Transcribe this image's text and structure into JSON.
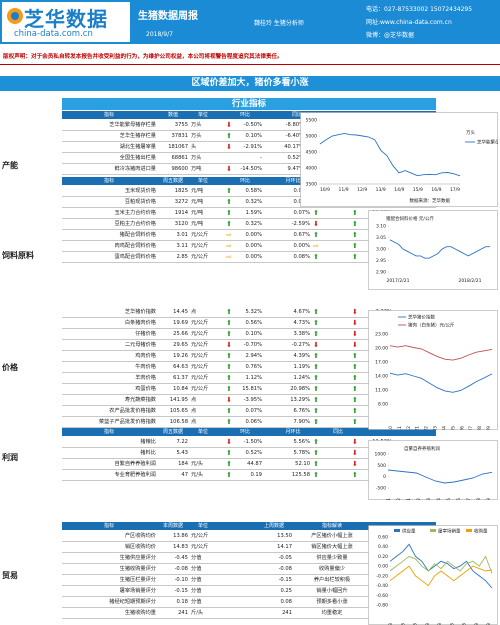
{
  "header": {
    "logo_cn": "芝华数据",
    "logo_en": "china-data.com.cn",
    "title": "生猪数据周报",
    "date": "2018/9/7",
    "author": "魏桂玲 生猪分析师",
    "tel": "电话：027-87533002    15072434295",
    "site": "网址:www.china-data.com.cn",
    "weibo": "微博：@芝华数据"
  },
  "notice": "版权声明：对于会员私自转发本报告并收受利益的行为，为维护公司权益，本公司将视警告程度追究其法律责任。",
  "banner": "区域价差加大，猪价多看小涨",
  "section_title": "行业指标",
  "production": {
    "category": "产能",
    "headers": [
      "指标",
      "数值",
      "单位",
      "环比",
      "",
      "同比"
    ],
    "rows": [
      {
        "name": "芝华能繁母猪存栏量",
        "value": "3755",
        "unit": "万头",
        "mom": "-0.50%",
        "mom_dir": "down",
        "yoy": "-8.80%",
        "yoy_dir": "down"
      },
      {
        "name": "芝华生猪存栏量",
        "value": "37831",
        "unit": "万头",
        "mom": "0.10%",
        "mom_dir": "up",
        "yoy": "-6.40%",
        "yoy_dir": "down"
      },
      {
        "name": "湖北生猪屠宰量",
        "value": "181067",
        "unit": "头",
        "mom": "-2.91%",
        "mom_dir": "down",
        "yoy": "40.17%",
        "yoy_dir": "up"
      },
      {
        "name": "全国生猪出栏量",
        "value": "68861",
        "unit": "万头",
        "mom": "-",
        "mom_dir": "none",
        "yoy": "0.52%",
        "yoy_dir": "up"
      },
      {
        "name": "鲜冷冻猪肉进口量",
        "value": "98600",
        "unit": "万吨",
        "mom": "-14.50%",
        "mom_dir": "down",
        "yoy": "9.47%",
        "yoy_dir": "up"
      }
    ]
  },
  "feed": {
    "category": "饲料原料",
    "headers": [
      "指标",
      "周五数据",
      "单位",
      "环比",
      "月环比",
      "同比"
    ],
    "rows": [
      {
        "name": "玉米现货价格",
        "value": "1825",
        "unit": "元/吨",
        "mom": "0.58%",
        "mom_dir": "up",
        "m2": "0.07%",
        "m2_dir": "up",
        "yoy": "6.33%",
        "yoy_dir": "up"
      },
      {
        "name": "豆粕现货价格",
        "value": "3272",
        "unit": "元/吨",
        "mom": "0.32%",
        "mom_dir": "up",
        "m2": "0.07%",
        "m2_dir": "up",
        "yoy": "12.69%",
        "yoy_dir": "up"
      },
      {
        "name": "玉米主力合约价格",
        "value": "1914",
        "unit": "元/吨",
        "mom": "1.59%",
        "mom_dir": "up",
        "m2": "0.07%",
        "m2_dir": "up",
        "yoy": "11.09%",
        "yoy_dir": "up"
      },
      {
        "name": "豆粕主力合约价格",
        "value": "3120",
        "unit": "元/吨",
        "mom": "0.32%",
        "mom_dir": "up",
        "m2": "-2.59%",
        "m2_dir": "down",
        "yoy": "11.95%",
        "yoy_dir": "up"
      },
      {
        "name": "猪配合饲料价格",
        "value": "3.01",
        "unit": "元/公斤",
        "mom": "0.00%",
        "mom_dir": "flat",
        "m2": "0.67%",
        "m2_dir": "up",
        "yoy": "0.67%",
        "yoy_dir": "up"
      },
      {
        "name": "肉鸡配合饲料价格",
        "value": "3.11",
        "unit": "元/公斤",
        "mom": "0.00%",
        "mom_dir": "flat",
        "m2": "0.00%",
        "m2_dir": "flat",
        "yoy": "1.30%",
        "yoy_dir": "up"
      },
      {
        "name": "蛋鸡配合饲料价格",
        "value": "2.85",
        "unit": "元/公斤",
        "mom": "0.00%",
        "mom_dir": "flat",
        "m2": "0.08%",
        "m2_dir": "up",
        "yoy": "1.79%",
        "yoy_dir": "up"
      }
    ]
  },
  "price": {
    "category": "价格",
    "rows": [
      {
        "name": "芝华猪价指数",
        "value": "14.45",
        "unit": "点",
        "mom": "5.32%",
        "mom_dir": "up",
        "m2": "4.67%",
        "m2_dir": "up",
        "yoy": "-2.23%",
        "yoy_dir": "down"
      },
      {
        "name": "白条猪肉价格",
        "value": "19.69",
        "unit": "元/公斤",
        "mom": "0.56%",
        "mom_dir": "up",
        "m2": "4.73%",
        "m2_dir": "up",
        "yoy": "-3.43%",
        "yoy_dir": "down"
      },
      {
        "name": "仔猪价格",
        "value": "25.66",
        "unit": "元/公斤",
        "mom": "0.10%",
        "mom_dir": "up",
        "m2": "3.38%",
        "m2_dir": "up",
        "yoy": "-26.20%",
        "yoy_dir": "down"
      },
      {
        "name": "二元母猪价格",
        "value": "29.65",
        "unit": "元/公斤",
        "mom": "-0.70%",
        "mom_dir": "down",
        "m2": "-0.27%",
        "m2_dir": "down",
        "yoy": "-16.12%",
        "yoy_dir": "down"
      },
      {
        "name": "鸡肉价格",
        "value": "19.26",
        "unit": "元/公斤",
        "mom": "2.94%",
        "mom_dir": "up",
        "m2": "4.39%",
        "m2_dir": "up",
        "yoy": "7.00%",
        "yoy_dir": "up"
      },
      {
        "name": "牛肉价格",
        "value": "64.63",
        "unit": "元/公斤",
        "mom": "0.76%",
        "mom_dir": "up",
        "m2": "1.19%",
        "m2_dir": "up",
        "yoy": "4.07%",
        "yoy_dir": "up"
      },
      {
        "name": "羊肉价格",
        "value": "61.37",
        "unit": "元/公斤",
        "mom": "1.12%",
        "mom_dir": "up",
        "m2": "1.24%",
        "m2_dir": "up",
        "yoy": "12.07%",
        "yoy_dir": "up"
      },
      {
        "name": "鸡蛋价格",
        "value": "10.84",
        "unit": "元/公斤",
        "mom": "15.81%",
        "mom_dir": "up",
        "m2": "20.98%",
        "m2_dir": "up",
        "yoy": "14.47%",
        "yoy_dir": "up"
      },
      {
        "name": "寿光蔬菜指数",
        "value": "141.95",
        "unit": "点",
        "mom": "-3.95%",
        "mom_dir": "down",
        "m2": "13.29%",
        "m2_dir": "up",
        "yoy": "16.54%",
        "yoy_dir": "up"
      },
      {
        "name": "农产品批发价格指数",
        "value": "105.65",
        "unit": "点",
        "mom": "0.07%",
        "mom_dir": "up",
        "m2": "6.76%",
        "m2_dir": "up",
        "yoy": "6.08%",
        "yoy_dir": "up"
      },
      {
        "name": "菜篮子产品批发价格指数",
        "value": "106.58",
        "unit": "点",
        "mom": "0.06%",
        "mom_dir": "up",
        "m2": "7.90%",
        "m2_dir": "up",
        "yoy": "7.06%",
        "yoy_dir": "up"
      }
    ]
  },
  "profit": {
    "category": "利润",
    "headers": [
      "指标",
      "周五数据",
      "单位",
      "环比",
      "月环比",
      "同比"
    ],
    "rows": [
      {
        "name": "猪粮比",
        "value": "7.22",
        "unit": "",
        "mom": "-1.50%",
        "mom_dir": "down",
        "m2": "5.56%",
        "m2_dir": "up",
        "yoy": "-11.52%",
        "yoy_dir": "down"
      },
      {
        "name": "猪料比",
        "value": "5.43",
        "unit": "",
        "mom": "0.52%",
        "mom_dir": "up",
        "m2": "5.78%",
        "m2_dir": "up",
        "yoy": "-11.23%",
        "yoy_dir": "down"
      },
      {
        "name": "自繁自养养殖利润",
        "value": "184",
        "unit": "元/头",
        "mom": "44.87",
        "mom_dir": "up",
        "m2": "52.10",
        "m2_dir": "up",
        "yoy": "-194.13",
        "yoy_dir": "down"
      },
      {
        "name": "专业育肥养殖利润",
        "value": "47",
        "unit": "元/头",
        "mom": "0.19",
        "mom_dir": "up",
        "m2": "125.58",
        "m2_dir": "up",
        "yoy": "81.66",
        "yoy_dir": "up"
      }
    ]
  },
  "trade": {
    "category": "贸易",
    "headers": [
      "指标",
      "本周数据",
      "单位",
      "上周数据",
      "指标解读"
    ],
    "rows": [
      {
        "name": "产区收购均价",
        "value": "13.86",
        "unit": "元/公斤",
        "last": "13.50",
        "note": "产区猪价小幅上涨"
      },
      {
        "name": "销区收购均价",
        "value": "14.83",
        "unit": "元/公斤",
        "last": "14.17",
        "note": "销区猪价大幅上涨"
      },
      {
        "name": "生猪供应量评分",
        "value": "-0.45",
        "unit": "分值",
        "last": "-0.05",
        "note": "供应量少致量"
      },
      {
        "name": "生猪收购量评分",
        "value": "-0.08",
        "unit": "分值",
        "last": "-0.08",
        "note": "收购量偏少"
      },
      {
        "name": "生猪压栏量评分",
        "value": "-0.10",
        "unit": "分值",
        "last": "-0.15",
        "note": "养户出栏较积极"
      },
      {
        "name": "屠宰场销量评分",
        "value": "-0.15",
        "unit": "分值",
        "last": "0.25",
        "note": "销量小幅回升"
      },
      {
        "name": "猪经纪短期预期评分",
        "value": "0.18",
        "unit": "分值",
        "last": "0.08",
        "note": "预期多看小涨"
      },
      {
        "name": "生猪收购均重",
        "value": "241",
        "unit": "斤/头",
        "last": "241",
        "note": "均重稳定"
      }
    ]
  },
  "charts": {
    "c1": {
      "legend": "芝华能繁母猪存栏量",
      "ylabel": "万头",
      "source": "数据来源：芝华数据",
      "yticks": [
        "5500",
        "5000",
        "4500",
        "4000",
        "3500"
      ],
      "xticks": [
        "10/9",
        "11/9",
        "12/9",
        "13/9",
        "14/9",
        "15/9",
        "16/9",
        "17/9"
      ],
      "ylim": [
        3500,
        5500
      ],
      "x": [
        2010.7,
        2011.2,
        2011.7,
        2012.0,
        2012.3,
        2012.7,
        2013.0,
        2013.3,
        2013.7,
        2014.0,
        2014.3,
        2014.7,
        2015.0,
        2015.3,
        2015.7,
        2016.0,
        2016.3,
        2016.7,
        2017.0,
        2017.3,
        2017.7,
        2018.0,
        2018.3,
        2018.7
      ],
      "y": [
        4750,
        4880,
        5000,
        5040,
        5080,
        5040,
        5030,
        5000,
        4970,
        4880,
        4550,
        4380,
        4070,
        3850,
        3920,
        3840,
        3760,
        3790,
        3800,
        3790,
        3850,
        3860,
        3820,
        3755
      ]
    },
    "c2": {
      "legend": "猪配合饲料价格",
      "ylabel": "元/公斤",
      "yticks": [
        "3.10",
        "3.05",
        "3.00",
        "2.95",
        "2.90"
      ],
      "xticks": [
        "2017/2/21",
        "2018/2/21"
      ],
      "ylim": [
        2.9,
        3.1
      ],
      "y": [
        3.04,
        3.03,
        3.02,
        3.0,
        2.99,
        2.98,
        2.97,
        2.97,
        2.96,
        2.96,
        2.97,
        2.98,
        3.0,
        3.01,
        3.01,
        3.0,
        2.99,
        2.98,
        2.97,
        2.98,
        2.99,
        3.0,
        3.01,
        3.01
      ]
    },
    "c3": {
      "legend1": "芝华猪价指数",
      "legend2": "猪肉（白条猪）元/公斤",
      "yticks": [
        "23.00",
        "20.00",
        "17.00",
        "14.00",
        "11.00",
        "8.00"
      ],
      "xticks": [
        "17/10",
        "17/11",
        "17/12",
        "18/1",
        "18/2",
        "18/3",
        "18/4",
        "18/5",
        "18/6",
        "18/7",
        "18/8",
        "18/9"
      ],
      "ylim": [
        8,
        23
      ],
      "s1": [
        14.6,
        14.2,
        14.5,
        14.0,
        13.5,
        12.5,
        11.5,
        10.8,
        10.5,
        10.9,
        11.8,
        12.8,
        13.6,
        14.45
      ],
      "s2": [
        20.5,
        20.2,
        20.5,
        20.1,
        19.8,
        19.0,
        18.2,
        17.6,
        17.4,
        17.8,
        18.5,
        19.1,
        19.4,
        19.69
      ]
    },
    "c4": {
      "legend": "自繁自养养殖利润",
      "yticks": [
        "1000",
        "500",
        "0",
        "-500"
      ],
      "xticks": [
        "17/11",
        "17/12",
        "18/1",
        "18/2",
        "18/3",
        "18/4",
        "18/5",
        "18/6",
        "18/7",
        "18/8",
        "18/9"
      ],
      "ylim": [
        -600,
        1100
      ],
      "y": [
        300,
        250,
        200,
        150,
        -50,
        -250,
        -350,
        -300,
        -200,
        -100,
        100,
        184
      ]
    },
    "c5": {
      "legend1": "供应量",
      "legend2": "屠宰场销量",
      "legend3": "收购量",
      "yticks": [
        "0.60",
        "0.40",
        "0.20",
        "0.00",
        "-0.20",
        "-0.40",
        "-0.60",
        "-0.80"
      ],
      "xticks": [
        "18/1/3",
        "18/2/3",
        "18/3/3",
        "18/4/3",
        "18/5/3",
        "18/6/3",
        "18/7/3",
        "18/8/3",
        "18/9/3"
      ],
      "ylim": [
        -0.8,
        0.6
      ],
      "s1": [
        0.1,
        0.2,
        0.3,
        0.45,
        0.2,
        0.1,
        -0.1,
        0.0,
        0.1,
        0.05,
        -0.05,
        0.0,
        0.1,
        -0.1,
        -0.2,
        -0.3,
        -0.45
      ],
      "s2": [
        -0.1,
        0.0,
        0.1,
        0.2,
        0.15,
        0.0,
        -0.1,
        0.05,
        -0.05,
        0.1,
        0.0,
        -0.1,
        0.05,
        0.1,
        0.0,
        0.2,
        -0.15
      ],
      "s3": [
        -0.3,
        -0.2,
        -0.1,
        0.0,
        -0.2,
        -0.3,
        -0.4,
        -0.2,
        -0.1,
        -0.2,
        -0.3,
        -0.2,
        -0.1,
        0.0,
        -0.05,
        -0.1,
        -0.08
      ]
    }
  },
  "colors": {
    "up": "#2e9e2e",
    "down": "#d42020",
    "flat": "#f0a000",
    "accent": "#1c8bd6"
  }
}
